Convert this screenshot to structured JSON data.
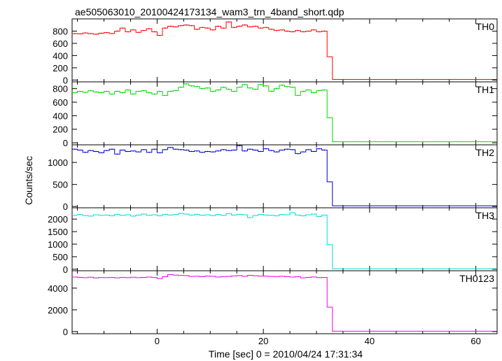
{
  "chart_data": {
    "type": "line",
    "title": "ae505063010_20100424173134_wam3_trn_4band_short.qdp",
    "xlabel": "Time [sec] 0 = 2010/04/24 17:31:34",
    "ylabel": "Counts/sec",
    "xlim": [
      -16,
      64
    ],
    "x_ticks": [
      0,
      20,
      40,
      60
    ],
    "bin_width": 1.0,
    "drop_time": 32.0,
    "panels": [
      {
        "name": "TH0",
        "color": "#ff0000",
        "ylim": [
          -30,
          1000
        ],
        "y_ticks": [
          0,
          200,
          400,
          600,
          800
        ],
        "pre_values": [
          760,
          755,
          770,
          760,
          750,
          765,
          775,
          760,
          800,
          850,
          790,
          820,
          780,
          810,
          840,
          790,
          730,
          850,
          880,
          870,
          890,
          900,
          890,
          830,
          860,
          850,
          820,
          880,
          850,
          950,
          860,
          880,
          900,
          870,
          880,
          850,
          860,
          830,
          810,
          820,
          800,
          790,
          810,
          790,
          800,
          820,
          790,
          800
        ],
        "post_values": [
          380,
          10,
          10,
          10,
          10,
          10,
          10,
          10,
          10,
          10,
          10,
          10,
          10,
          10,
          10,
          10,
          10,
          10,
          10,
          10,
          10,
          10,
          10,
          10,
          10,
          10,
          10,
          10,
          10,
          10,
          10,
          10
        ]
      },
      {
        "name": "TH1",
        "color": "#00dd00",
        "ylim": [
          -30,
          900
        ],
        "y_ticks": [
          0,
          200,
          400,
          600,
          800
        ],
        "pre_values": [
          740,
          760,
          745,
          770,
          750,
          740,
          760,
          720,
          760,
          740,
          780,
          720,
          760,
          770,
          740,
          720,
          760,
          700,
          760,
          770,
          820,
          870,
          840,
          830,
          800,
          810,
          760,
          780,
          820,
          790,
          760,
          820,
          860,
          810,
          790,
          860,
          840,
          760,
          800,
          850,
          830,
          820,
          700,
          760,
          780,
          740,
          770,
          780
        ],
        "post_values": [
          370,
          15,
          15,
          15,
          15,
          15,
          15,
          15,
          15,
          15,
          15,
          15,
          15,
          15,
          15,
          15,
          15,
          15,
          15,
          15,
          15,
          15,
          15,
          15,
          15,
          15,
          15,
          15,
          15,
          15,
          15,
          15
        ]
      },
      {
        "name": "TH2",
        "color": "#0000cc",
        "ylim": [
          -30,
          1400
        ],
        "y_ticks": [
          0,
          500,
          1000
        ],
        "pre_values": [
          1300,
          1280,
          1230,
          1270,
          1250,
          1220,
          1270,
          1300,
          1190,
          1280,
          1250,
          1260,
          1240,
          1290,
          1230,
          1300,
          1220,
          1290,
          1340,
          1300,
          1290,
          1280,
          1250,
          1260,
          1230,
          1250,
          1240,
          1260,
          1290,
          1270,
          1280,
          1380,
          1260,
          1300,
          1280,
          1250,
          1310,
          1270,
          1240,
          1280,
          1300,
          1290,
          1200,
          1240,
          1290,
          1250,
          1310,
          1280
        ],
        "post_values": [
          560,
          15,
          15,
          15,
          15,
          15,
          15,
          15,
          15,
          15,
          15,
          15,
          15,
          15,
          15,
          15,
          15,
          15,
          15,
          15,
          15,
          15,
          15,
          15,
          15,
          15,
          15,
          15,
          15,
          15,
          15,
          15
        ]
      },
      {
        "name": "TH3",
        "color": "#00dddd",
        "ylim": [
          -60,
          2450
        ],
        "y_ticks": [
          0,
          500,
          1000,
          1500,
          2000
        ],
        "pre_values": [
          2150,
          2180,
          2140,
          2120,
          2170,
          2150,
          2160,
          2130,
          2190,
          2150,
          2170,
          2120,
          2160,
          2200,
          2150,
          2170,
          2130,
          2190,
          2160,
          2180,
          2230,
          2200,
          2160,
          2190,
          2150,
          2170,
          2140,
          2180,
          2150,
          2220,
          2160,
          2190,
          2170,
          2060,
          2140,
          2190,
          2160,
          2150,
          2130,
          2180,
          2170,
          2250,
          2160,
          2130,
          2170,
          2200,
          2100,
          2160
        ],
        "post_values": [
          980,
          20,
          20,
          20,
          20,
          20,
          20,
          20,
          20,
          20,
          20,
          20,
          20,
          20,
          20,
          20,
          20,
          20,
          20,
          20,
          20,
          20,
          20,
          20,
          20,
          20,
          20,
          20,
          20,
          20,
          20,
          20
        ]
      },
      {
        "name": "TH0123",
        "color": "#ee00ee",
        "ylim": [
          -200,
          5600
        ],
        "y_ticks": [
          0,
          2000,
          4000
        ],
        "pre_values": [
          5020,
          4990,
          4960,
          5000,
          4940,
          4980,
          4970,
          4990,
          4950,
          4990,
          4960,
          5000,
          4960,
          4990,
          5020,
          4980,
          4880,
          5050,
          5250,
          5200,
          5170,
          5160,
          5080,
          5090,
          5050,
          5110,
          5090,
          5020,
          5060,
          5080,
          5120,
          5160,
          5090,
          5180,
          5140,
          5110,
          5100,
          5080,
          5060,
          5090,
          5050,
          5020,
          5060,
          4950,
          4990,
          5030,
          4970,
          4990
        ],
        "post_values": [
          2250,
          30,
          30,
          30,
          30,
          30,
          30,
          30,
          30,
          30,
          30,
          30,
          30,
          30,
          30,
          30,
          30,
          30,
          30,
          30,
          30,
          30,
          30,
          30,
          30,
          30,
          30,
          30,
          30,
          30,
          30,
          30
        ]
      }
    ]
  }
}
